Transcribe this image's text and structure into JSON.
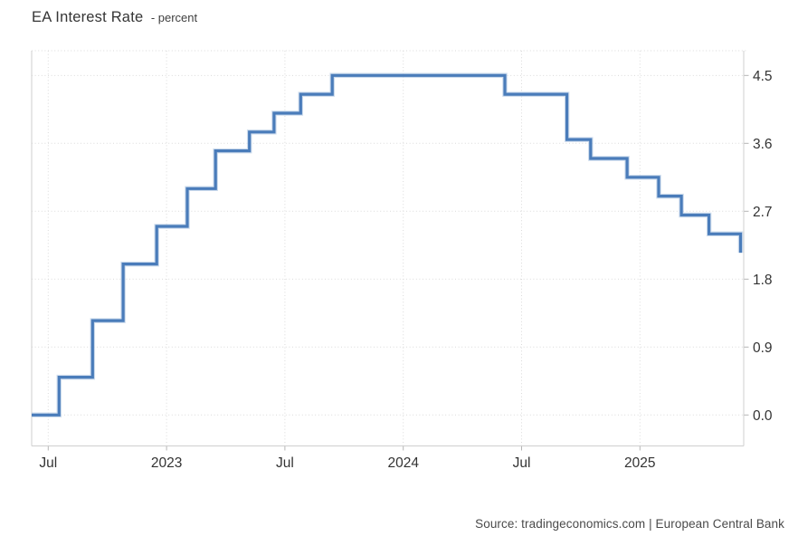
{
  "header": {
    "title": "EA Interest Rate",
    "unit_label": "- percent"
  },
  "footer": {
    "source": "Source: tradingeconomics.com | European Central Bank"
  },
  "colors": {
    "line": "#4a7cba",
    "line_halo": "#b3c9e4",
    "grid": "#dadada",
    "axis_border": "#cfcfcf",
    "tick_mark": "#b5b5b5",
    "tick_label": "#333333",
    "background": "#ffffff"
  },
  "chart_data": {
    "type": "line",
    "subtype": "step",
    "title": "EA Interest Rate",
    "ylabel": "percent",
    "xlabel": "",
    "legend": "none",
    "grid": "dotted",
    "ylim": [
      -0.4,
      4.85
    ],
    "yticks": [
      {
        "label": "0.0",
        "value": 0.0
      },
      {
        "label": "0.9",
        "value": 0.9
      },
      {
        "label": "1.8",
        "value": 1.8
      },
      {
        "label": "2.7",
        "value": 2.7
      },
      {
        "label": "3.6",
        "value": 3.6
      },
      {
        "label": "4.5",
        "value": 4.5
      }
    ],
    "xticks": [
      {
        "label": "Jul",
        "months_from_jul_2022": 0
      },
      {
        "label": "2023",
        "months_from_jul_2022": 6
      },
      {
        "label": "Jul",
        "months_from_jul_2022": 12
      },
      {
        "label": "2024",
        "months_from_jul_2022": 18
      },
      {
        "label": "Jul",
        "months_from_jul_2022": 24
      },
      {
        "label": "2025",
        "months_from_jul_2022": 30
      }
    ],
    "xlim_months_from_jul_2022": [
      -0.84,
      35.26
    ],
    "series": [
      {
        "name": "EA Interest Rate (percent)",
        "style": "step-after",
        "points": [
          {
            "date": "Jun 2022",
            "x_months": -0.84,
            "value": 0.0
          },
          {
            "date": "Jul 2022",
            "x_months": 0.55,
            "value": 0.5
          },
          {
            "date": "Sep 2022",
            "x_months": 2.25,
            "value": 1.25
          },
          {
            "date": "Nov 2022",
            "x_months": 3.8,
            "value": 2.0
          },
          {
            "date": "Dec 2022",
            "x_months": 5.5,
            "value": 2.5
          },
          {
            "date": "Feb 2023",
            "x_months": 7.05,
            "value": 3.0
          },
          {
            "date": "Mar 2023",
            "x_months": 8.48,
            "value": 3.5
          },
          {
            "date": "May 2023",
            "x_months": 10.2,
            "value": 3.75
          },
          {
            "date": "Jun 2023",
            "x_months": 11.45,
            "value": 4.0
          },
          {
            "date": "Aug 2023",
            "x_months": 12.8,
            "value": 4.25
          },
          {
            "date": "Sep 2023",
            "x_months": 14.4,
            "value": 4.5
          },
          {
            "date": "Jun 2024",
            "x_months": 23.15,
            "value": 4.25
          },
          {
            "date": "Sep 2024",
            "x_months": 26.3,
            "value": 3.65
          },
          {
            "date": "Oct 2024",
            "x_months": 27.5,
            "value": 3.4
          },
          {
            "date": "Dec 2024",
            "x_months": 29.35,
            "value": 3.15
          },
          {
            "date": "Feb 2025",
            "x_months": 30.95,
            "value": 2.9
          },
          {
            "date": "Mar 2025",
            "x_months": 32.1,
            "value": 2.65
          },
          {
            "date": "Apr 2025",
            "x_months": 33.5,
            "value": 2.4
          },
          {
            "date": "Jun 2025",
            "x_months": 35.1,
            "value": 2.15
          }
        ]
      }
    ]
  }
}
